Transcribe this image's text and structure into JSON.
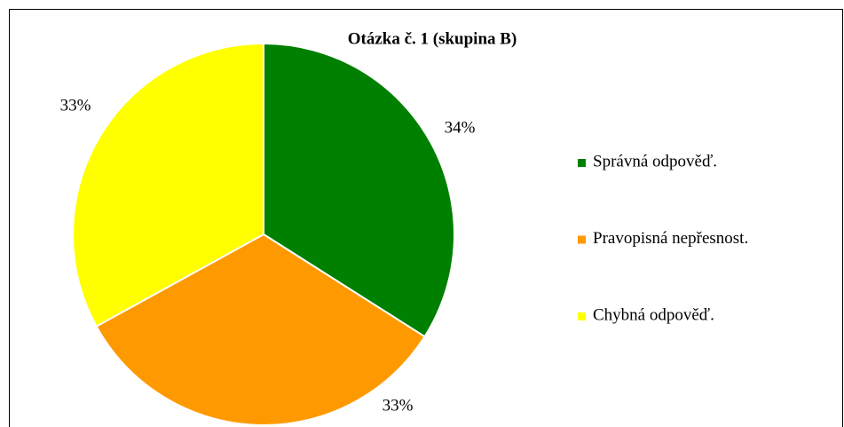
{
  "chart_data": {
    "type": "pie",
    "title": "Otázka č. 1 (skupina B)",
    "categories": [
      "Správná odpověď.",
      "Pravopisná nepřesnost.",
      "Chybná odpověď."
    ],
    "values": [
      34,
      33,
      33
    ],
    "value_labels": [
      "34%",
      "33%",
      "33%"
    ],
    "colors": [
      "#008000",
      "#ff9900",
      "#ffff00"
    ],
    "legend": "right"
  }
}
